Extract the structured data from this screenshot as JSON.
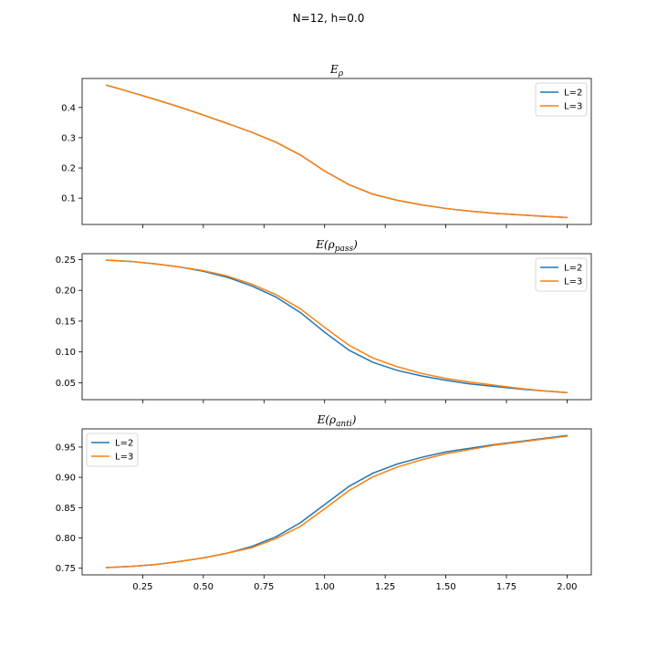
{
  "figure_title": "N=12, h=0.0",
  "colors": {
    "L2": "#1f77b4",
    "L3": "#ff7f0e"
  },
  "chart_data": [
    {
      "type": "line",
      "title": {
        "base": "E",
        "sub": "ρ",
        "open": "",
        "close": ""
      },
      "xlabel": "",
      "ylabel": "",
      "xlim": [
        0.0,
        2.1
      ],
      "ylim": [
        0.013,
        0.496
      ],
      "xticks": [
        0.25,
        0.5,
        0.75,
        1.0,
        1.25,
        1.5,
        1.75,
        2.0
      ],
      "xtick_labels": [],
      "yticks": [
        0.1,
        0.2,
        0.3,
        0.4
      ],
      "ytick_labels": [
        "0.1",
        "0.2",
        "0.3",
        "0.4"
      ],
      "legend": "top-right",
      "x": [
        0.1,
        0.2,
        0.3,
        0.4,
        0.5,
        0.6,
        0.7,
        0.8,
        0.9,
        1.0,
        1.1,
        1.2,
        1.3,
        1.4,
        1.5,
        1.6,
        1.7,
        1.8,
        1.9,
        2.0
      ],
      "series": [
        {
          "name": "L=2",
          "color": "#1f77b4",
          "values": [
            0.474,
            0.451,
            0.427,
            0.402,
            0.375,
            0.347,
            0.318,
            0.285,
            0.243,
            0.19,
            0.145,
            0.113,
            0.093,
            0.078,
            0.066,
            0.057,
            0.05,
            0.045,
            0.04,
            0.036
          ]
        },
        {
          "name": "L=3",
          "color": "#ff7f0e",
          "values": [
            0.474,
            0.451,
            0.427,
            0.402,
            0.375,
            0.347,
            0.318,
            0.285,
            0.243,
            0.19,
            0.145,
            0.113,
            0.093,
            0.078,
            0.066,
            0.057,
            0.05,
            0.045,
            0.04,
            0.036
          ]
        }
      ]
    },
    {
      "type": "line",
      "title": {
        "base": "E",
        "sub": "pass",
        "open": "(ρ",
        "close": ")"
      },
      "xlabel": "",
      "ylabel": "",
      "xlim": [
        0.0,
        2.1
      ],
      "ylim": [
        0.0225,
        0.2595
      ],
      "xticks": [
        0.25,
        0.5,
        0.75,
        1.0,
        1.25,
        1.5,
        1.75,
        2.0
      ],
      "xtick_labels": [],
      "yticks": [
        0.05,
        0.1,
        0.15,
        0.2,
        0.25
      ],
      "ytick_labels": [
        "0.05",
        "0.10",
        "0.15",
        "0.20",
        "0.25"
      ],
      "legend": "top-right",
      "x": [
        0.1,
        0.2,
        0.3,
        0.4,
        0.5,
        0.6,
        0.7,
        0.8,
        0.9,
        1.0,
        1.1,
        1.2,
        1.3,
        1.4,
        1.5,
        1.6,
        1.7,
        1.8,
        1.9,
        2.0
      ],
      "series": [
        {
          "name": "L=2",
          "color": "#1f77b4",
          "values": [
            0.249,
            0.247,
            0.243,
            0.238,
            0.231,
            0.221,
            0.207,
            0.189,
            0.164,
            0.132,
            0.103,
            0.083,
            0.07,
            0.061,
            0.054,
            0.048,
            0.044,
            0.04,
            0.037,
            0.034
          ]
        },
        {
          "name": "L=3",
          "color": "#ff7f0e",
          "values": [
            0.249,
            0.247,
            0.243,
            0.238,
            0.232,
            0.223,
            0.21,
            0.193,
            0.17,
            0.14,
            0.111,
            0.09,
            0.076,
            0.065,
            0.057,
            0.051,
            0.046,
            0.041,
            0.037,
            0.034
          ]
        }
      ]
    },
    {
      "type": "line",
      "title": {
        "base": "E",
        "sub": "anti",
        "open": "(ρ",
        "close": ")"
      },
      "xlabel": "",
      "ylabel": "",
      "xlim": [
        0.0,
        2.1
      ],
      "ylim": [
        0.739,
        0.98
      ],
      "xticks": [
        0.25,
        0.5,
        0.75,
        1.0,
        1.25,
        1.5,
        1.75,
        2.0
      ],
      "xtick_labels": [
        "0.25",
        "0.50",
        "0.75",
        "1.00",
        "1.25",
        "1.50",
        "1.75",
        "2.00"
      ],
      "yticks": [
        0.75,
        0.8,
        0.85,
        0.9,
        0.95
      ],
      "ytick_labels": [
        "0.75",
        "0.80",
        "0.85",
        "0.90",
        "0.95"
      ],
      "legend": "top-left",
      "x": [
        0.1,
        0.2,
        0.3,
        0.4,
        0.5,
        0.6,
        0.7,
        0.8,
        0.9,
        1.0,
        1.1,
        1.2,
        1.3,
        1.4,
        1.5,
        1.6,
        1.7,
        1.8,
        1.9,
        2.0
      ],
      "series": [
        {
          "name": "L=2",
          "color": "#1f77b4",
          "values": [
            0.751,
            0.753,
            0.756,
            0.761,
            0.767,
            0.775,
            0.786,
            0.802,
            0.825,
            0.855,
            0.885,
            0.907,
            0.922,
            0.933,
            0.942,
            0.948,
            0.954,
            0.959,
            0.964,
            0.969
          ]
        },
        {
          "name": "L=3",
          "color": "#ff7f0e",
          "values": [
            0.751,
            0.753,
            0.756,
            0.761,
            0.767,
            0.775,
            0.784,
            0.799,
            0.819,
            0.848,
            0.878,
            0.901,
            0.917,
            0.929,
            0.939,
            0.946,
            0.953,
            0.958,
            0.963,
            0.968
          ]
        }
      ]
    }
  ]
}
